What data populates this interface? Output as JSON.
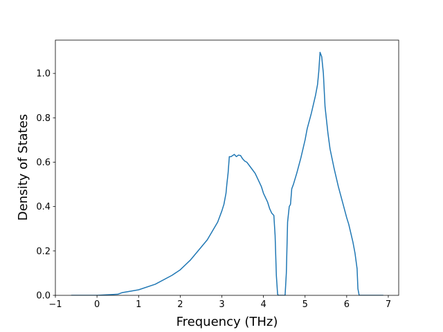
{
  "chart_data": {
    "type": "line",
    "x_label": "Frequency (THz)",
    "y_label": "Density of States",
    "xlim": [
      -1,
      7.25
    ],
    "ylim": [
      0,
      1.15
    ],
    "xticks": [
      {
        "value": -1,
        "label": "−1"
      },
      0,
      1,
      2,
      3,
      4,
      5,
      6,
      7
    ],
    "yticks": [
      {
        "value": 0,
        "label": "0.0"
      },
      0.2,
      0.4,
      0.6,
      0.8,
      {
        "value": 1,
        "label": "1.0"
      }
    ],
    "grid": false,
    "series": [
      {
        "color": "#1f77b4",
        "x": [
          -0.62,
          0,
          0.5,
          0.6,
          1.0,
          1.4,
          1.8,
          2.0,
          2.25,
          2.65,
          2.9,
          3.0,
          3.05,
          3.1,
          3.12,
          3.15,
          3.18,
          3.22,
          3.3,
          3.35,
          3.4,
          3.45,
          3.5,
          3.55,
          3.6,
          3.7,
          3.8,
          3.9,
          3.95,
          4.0,
          4.05,
          4.1,
          4.15,
          4.2,
          4.25,
          4.28,
          4.31,
          4.34,
          4.36,
          4.52,
          4.55,
          4.58,
          4.62,
          4.65,
          4.68,
          4.72,
          4.8,
          4.9,
          5.0,
          5.05,
          5.15,
          5.2,
          5.25,
          5.3,
          5.33,
          5.36,
          5.4,
          5.44,
          5.48,
          5.55,
          5.6,
          5.7,
          5.8,
          5.9,
          6.0,
          6.05,
          6.1,
          6.15,
          6.2,
          6.25,
          6.27,
          6.3,
          6.88
        ],
        "values": [
          0,
          0,
          0.005,
          0.012,
          0.025,
          0.05,
          0.09,
          0.115,
          0.16,
          0.25,
          0.33,
          0.38,
          0.41,
          0.46,
          0.5,
          0.55,
          0.625,
          0.625,
          0.635,
          0.625,
          0.632,
          0.63,
          0.615,
          0.605,
          0.6,
          0.575,
          0.55,
          0.51,
          0.49,
          0.46,
          0.44,
          0.42,
          0.39,
          0.37,
          0.36,
          0.27,
          0.09,
          0.005,
          0,
          0,
          0.1,
          0.33,
          0.4,
          0.41,
          0.48,
          0.5,
          0.55,
          0.62,
          0.7,
          0.75,
          0.82,
          0.86,
          0.9,
          0.95,
          1.01,
          1.095,
          1.075,
          1.0,
          0.85,
          0.73,
          0.66,
          0.57,
          0.49,
          0.42,
          0.35,
          0.32,
          0.28,
          0.24,
          0.19,
          0.12,
          0.03,
          0,
          0
        ]
      }
    ]
  }
}
